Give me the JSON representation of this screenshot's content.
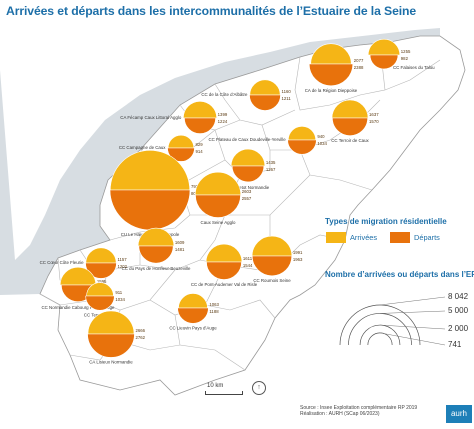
{
  "title": "Arrivées et départs dans les intercommunalités de l’Estuaire de la Seine",
  "legend": {
    "types_title": "Types de migration résidentielle",
    "arrivees": "Arrivées",
    "departs": "Départs",
    "sizes_title": "Nombre d’arrivées ou départs dans l’EPCI",
    "size_values": [
      "8 042",
      "5 000",
      "2 000",
      "741"
    ]
  },
  "colors": {
    "arrivees": "#f5b516",
    "departs": "#e8720c",
    "land": "#ffffff",
    "sea": "#d7dde2"
  },
  "scale_label": "10 km",
  "source": {
    "line1": "Source : Insee Exploitation complémentaire RP 2019",
    "line2": "Réalisation : AURH (SCap 06/2023)"
  },
  "logo": "aurh",
  "epci": [
    {
      "name": "CA de la Région Dieppoise",
      "arr": "2077",
      "dep": "2388"
    },
    {
      "name": "CC Falaises du Talou",
      "arr": "1255",
      "dep": "982"
    },
    {
      "name": "CC de la Côte d’Albâtre",
      "arr": "1160",
      "dep": "1211"
    },
    {
      "name": "CA Fécamp Caux Littoral Agglo",
      "arr": "1399",
      "dep": "1224"
    },
    {
      "name": "CC Terroir de Caux",
      "arr": "1637",
      "dep": "1570"
    },
    {
      "name": "CC Plateau de Caux Doudeville-Yerville",
      "arr": "940",
      "dep": "1034"
    },
    {
      "name": "CC Campagne de Caux",
      "arr": "829",
      "dep": "914"
    },
    {
      "name": "CC Yvetot Normandie",
      "arr": "1435",
      "dep": "1267"
    },
    {
      "name": "CU Le Havre Seine Métropole",
      "arr": "7926",
      "dep": "8042"
    },
    {
      "name": "Caux Seine Agglo",
      "arr": "2603",
      "dep": "2557"
    },
    {
      "name": "CC du Pays de Honfleur-Beuzeville",
      "arr": "1609",
      "dep": "1481"
    },
    {
      "name": "CC Cœur Côte Fleurie",
      "arr": "1157",
      "dep": "1202"
    },
    {
      "name": "CC Normandie Cabourg Pays d’Auge",
      "arr": "1595",
      "dep": "1397"
    },
    {
      "name": "CC Terre d’Auge",
      "arr": "911",
      "dep": "1034"
    },
    {
      "name": "CC de Pont-Audemer Val de Risle",
      "arr": "1611",
      "dep": "1544"
    },
    {
      "name": "CC Roumois Seine",
      "arr": "1991",
      "dep": "1963"
    },
    {
      "name": "CC Lieuvin Pays d’Auge",
      "arr": "1063",
      "dep": "1188"
    },
    {
      "name": "CA Lisieux Normandie",
      "arr": "2666",
      "dep": "2762"
    }
  ]
}
